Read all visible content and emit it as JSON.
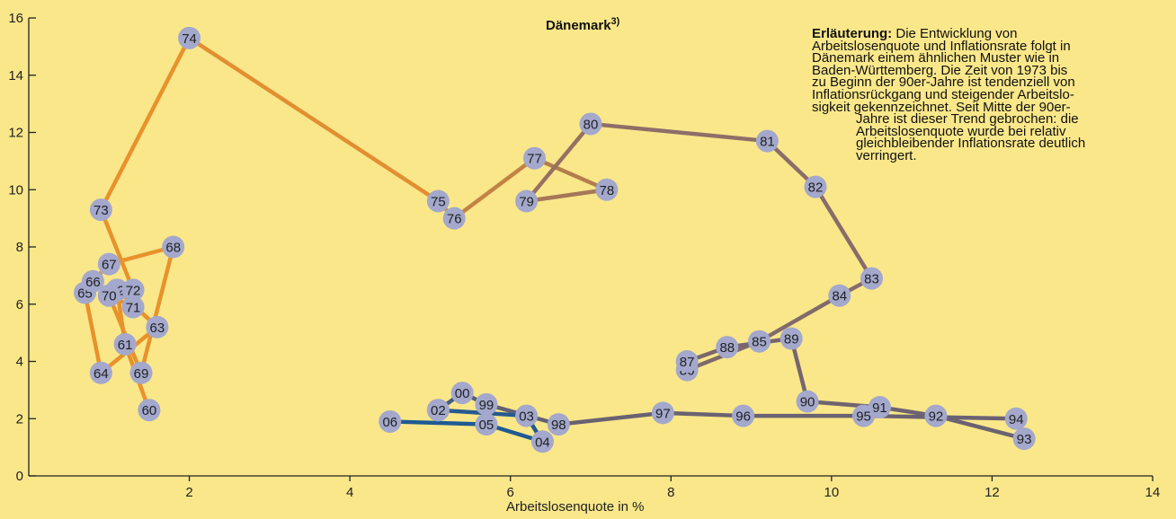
{
  "chart_data": {
    "type": "scatter",
    "title": "Dänemark",
    "title_superscript": "3)",
    "xlabel": "Arbeitslosenquote in %",
    "ylabel": "",
    "xlim": [
      0,
      14
    ],
    "ylim": [
      0,
      16
    ],
    "x_ticks": [
      2,
      4,
      6,
      8,
      10,
      12,
      14
    ],
    "y_ticks": [
      0,
      2,
      4,
      6,
      8,
      10,
      12,
      14,
      16
    ],
    "grid": false,
    "legend": "none",
    "connected": true,
    "points": [
      {
        "label": "60",
        "x": 1.5,
        "y": 2.3
      },
      {
        "label": "61",
        "x": 1.2,
        "y": 4.6
      },
      {
        "label": "62",
        "x": 1.1,
        "y": 6.5
      },
      {
        "label": "63",
        "x": 1.6,
        "y": 5.2
      },
      {
        "label": "64",
        "x": 0.9,
        "y": 3.6
      },
      {
        "label": "65",
        "x": 0.7,
        "y": 6.4
      },
      {
        "label": "66",
        "x": 0.8,
        "y": 6.8
      },
      {
        "label": "67",
        "x": 1.0,
        "y": 7.4
      },
      {
        "label": "68",
        "x": 1.8,
        "y": 8.0
      },
      {
        "label": "69",
        "x": 1.4,
        "y": 3.6
      },
      {
        "label": "70",
        "x": 1.0,
        "y": 6.3
      },
      {
        "label": "71",
        "x": 1.3,
        "y": 5.9
      },
      {
        "label": "72",
        "x": 1.3,
        "y": 6.5
      },
      {
        "label": "73",
        "x": 0.9,
        "y": 9.3
      },
      {
        "label": "74",
        "x": 2.0,
        "y": 15.3
      },
      {
        "label": "75",
        "x": 5.1,
        "y": 9.6
      },
      {
        "label": "76",
        "x": 5.3,
        "y": 9.0
      },
      {
        "label": "77",
        "x": 6.3,
        "y": 11.1
      },
      {
        "label": "78",
        "x": 7.2,
        "y": 10.0
      },
      {
        "label": "79",
        "x": 6.2,
        "y": 9.6
      },
      {
        "label": "80",
        "x": 7.0,
        "y": 12.3
      },
      {
        "label": "81",
        "x": 9.2,
        "y": 11.7
      },
      {
        "label": "82",
        "x": 9.8,
        "y": 10.1
      },
      {
        "label": "83",
        "x": 10.5,
        "y": 6.9
      },
      {
        "label": "84",
        "x": 10.1,
        "y": 6.3
      },
      {
        "label": "85",
        "x": 9.1,
        "y": 4.7
      },
      {
        "label": "86",
        "x": 8.2,
        "y": 3.7
      },
      {
        "label": "87",
        "x": 8.2,
        "y": 4.0
      },
      {
        "label": "88",
        "x": 8.7,
        "y": 4.5
      },
      {
        "label": "89",
        "x": 9.5,
        "y": 4.8
      },
      {
        "label": "90",
        "x": 9.7,
        "y": 2.6
      },
      {
        "label": "91",
        "x": 10.6,
        "y": 2.4
      },
      {
        "label": "92",
        "x": 11.3,
        "y": 2.1
      },
      {
        "label": "93",
        "x": 12.4,
        "y": 1.3
      },
      {
        "label": "94",
        "x": 12.3,
        "y": 2.0
      },
      {
        "label": "95",
        "x": 10.4,
        "y": 2.1
      },
      {
        "label": "96",
        "x": 8.9,
        "y": 2.1
      },
      {
        "label": "97",
        "x": 7.9,
        "y": 2.2
      },
      {
        "label": "98",
        "x": 6.6,
        "y": 1.8
      },
      {
        "label": "99",
        "x": 5.7,
        "y": 2.5
      },
      {
        "label": "00",
        "x": 5.4,
        "y": 2.9
      },
      {
        "label": "01",
        "x": 5.1,
        "y": 2.3
      },
      {
        "label": "02",
        "x": 5.1,
        "y": 2.3
      },
      {
        "label": "03",
        "x": 6.2,
        "y": 2.1
      },
      {
        "label": "04",
        "x": 6.4,
        "y": 1.2
      },
      {
        "label": "05",
        "x": 5.7,
        "y": 1.8
      },
      {
        "label": "06",
        "x": 4.5,
        "y": 1.9
      }
    ],
    "colors": {
      "line_start": "#e8922c",
      "line_mid": "#8f6e68",
      "line_late": "#6a6272",
      "line_end": "#1f5a92",
      "marker": "#a3a8cc"
    }
  },
  "annotation": {
    "heading": "Erläuterung:",
    "lines": [
      "Die Entwicklung von",
      "Arbeitslosenquote und Inflationsrate folgt in",
      "Dänemark einem ähnlichen Muster wie in",
      "Baden-Württemberg. Die Zeit von 1973 bis",
      "zu Beginn der 90er-Jahre ist tendenziell von",
      "Inflationsrückgang und steigender Arbeitslo-",
      "sigkeit gekennzeichnet. Seit Mitte der 90er-",
      "Jahre ist dieser Trend gebrochen: die",
      "Arbeitslosenquote wurde bei relativ",
      "gleichbleibender Inflationsrate deutlich",
      "verringert."
    ]
  }
}
